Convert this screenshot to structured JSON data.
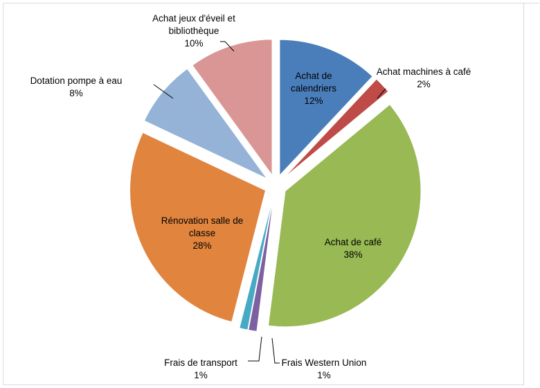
{
  "chart_data": {
    "type": "pie",
    "categories": [
      "Achat de calendriers",
      "Achat machines à café",
      "Achat de café",
      "Frais Western Union",
      "Frais de transport",
      "Rénovation salle de classe",
      "Dotation pompe à eau",
      "Achat jeux d'éveil et bibliothèque"
    ],
    "values": [
      12,
      2,
      38,
      1,
      1,
      28,
      8,
      10
    ],
    "value_labels": [
      "12%",
      "2%",
      "38%",
      "1%",
      "1%",
      "28%",
      "8%",
      "10%"
    ],
    "colors": [
      "#4a7ebb",
      "#be4b48",
      "#98b954",
      "#7d60a0",
      "#46aac5",
      "#e0843e",
      "#95b3d7",
      "#d99694"
    ]
  }
}
